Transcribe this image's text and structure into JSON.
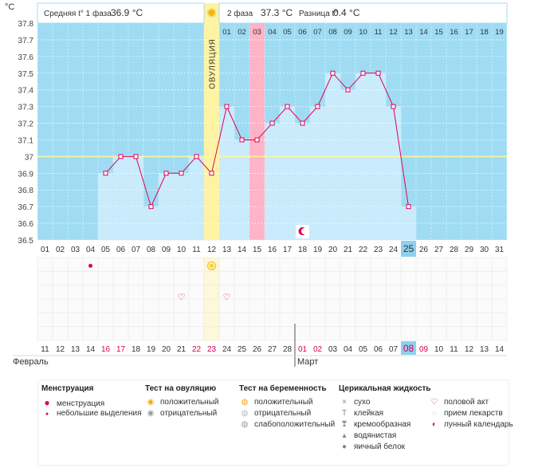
{
  "header": {
    "ylabel": "°C",
    "phase1_label": "Средняя t° 1 фаза",
    "phase1_value": "36.9 °C",
    "phase2_label": "2 фаза",
    "phase2_value": "37.3 °C",
    "diff_label": "Разница t°",
    "diff_value": "0.4 °C",
    "ovulation_label": "ОВУЛЯЦИЯ"
  },
  "chart_data": {
    "type": "line",
    "title": "",
    "ylabel": "°C",
    "ylim": [
      36.5,
      37.8
    ],
    "yticks": [
      "36.5",
      "36.6",
      "36.7",
      "36.8",
      "36.9",
      "37",
      "37.1",
      "37.2",
      "37.3",
      "37.4",
      "37.5",
      "37.6",
      "37.7",
      "37.8"
    ],
    "cycle_days": [
      "01",
      "02",
      "03",
      "04",
      "05",
      "06",
      "07",
      "08",
      "09",
      "10",
      "11",
      "12",
      "13",
      "14",
      "15",
      "16",
      "17",
      "18",
      "19",
      "20",
      "21",
      "22",
      "23",
      "24",
      "25",
      "26",
      "27",
      "28",
      "29",
      "30",
      "31"
    ],
    "dates": [
      "11",
      "12",
      "13",
      "14",
      "16",
      "17",
      "18",
      "19",
      "20",
      "21",
      "22",
      "23",
      "24",
      "25",
      "26",
      "27",
      "28",
      "01",
      "02",
      "03",
      "04",
      "05",
      "06",
      "07",
      "08",
      "09",
      "10",
      "11",
      "12",
      "13",
      "14"
    ],
    "weekend_dates": [
      4,
      5,
      10,
      11,
      17,
      18,
      24,
      25
    ],
    "current_index": 24,
    "months": [
      {
        "label": "Февраль",
        "index": 0
      },
      {
        "label": "Март",
        "index": 17
      }
    ],
    "phase2_days": [
      "01",
      "02",
      "03",
      "04",
      "05",
      "06",
      "07",
      "08",
      "09",
      "10",
      "11",
      "12",
      "13",
      "14",
      "15",
      "16",
      "17",
      "18",
      "19"
    ],
    "phase2_start_index": 12,
    "ovulation_index": 11,
    "highlight_index": 14,
    "coverline": 37.0,
    "series": [
      {
        "values": [
          null,
          null,
          null,
          null,
          36.9,
          37.0,
          37.0,
          36.7,
          36.9,
          36.9,
          37.0,
          36.9,
          37.3,
          37.1,
          37.1,
          37.2,
          37.3,
          37.2,
          37.3,
          37.5,
          37.4,
          37.5,
          37.5,
          37.3,
          36.7,
          null,
          null,
          null,
          null,
          null,
          null
        ]
      }
    ],
    "markers": {
      "menstruation_light": [
        3
      ],
      "ovulation_test_positive": [
        11
      ],
      "intercourse": [
        9,
        12
      ],
      "lunar_calendar": [
        17
      ]
    },
    "colors": {
      "plot": "#9fdcf3",
      "bar": "#c9ebfb",
      "line": "#e0005a",
      "ovulation": "#fdf3a3",
      "highlight": "#ffb3c6",
      "current": "#8fd0ef"
    }
  },
  "legend": {
    "menstruation": {
      "title": "Менструация",
      "items": [
        {
          "icon": "drop-icon",
          "label": "менструация"
        },
        {
          "icon": "small-drop-icon",
          "label": "небольшие выделения"
        }
      ]
    },
    "ovulation_test": {
      "title": "Тест на овуляцию",
      "items": [
        {
          "icon": "positive-test-icon",
          "label": "положительный"
        },
        {
          "icon": "negative-test-icon",
          "label": "отрицательный"
        }
      ]
    },
    "pregnancy_test": {
      "title": "Тест на беременность",
      "items": [
        {
          "icon": "positive-test-icon",
          "label": "положительный"
        },
        {
          "icon": "negative-test-icon",
          "label": "отрицательный"
        },
        {
          "icon": "weak-test-icon",
          "label": "слабоположительный"
        }
      ]
    },
    "cervical_fluid": {
      "title": "Церикальная жидкость",
      "items": [
        {
          "icon": "dry-icon",
          "label": "сухо"
        },
        {
          "icon": "sticky-icon",
          "label": "клейкая"
        },
        {
          "icon": "creamy-icon",
          "label": "кремообразная"
        },
        {
          "icon": "watery-icon",
          "label": "водянистая"
        },
        {
          "icon": "eggwhite-icon",
          "label": "яичный белок"
        }
      ]
    },
    "other": {
      "items": [
        {
          "icon": "heart-icon",
          "label": "половой акт"
        },
        {
          "icon": "pill-icon",
          "label": "прием лекарств"
        },
        {
          "icon": "moon-icon",
          "label": "лунный календарь"
        }
      ]
    }
  }
}
